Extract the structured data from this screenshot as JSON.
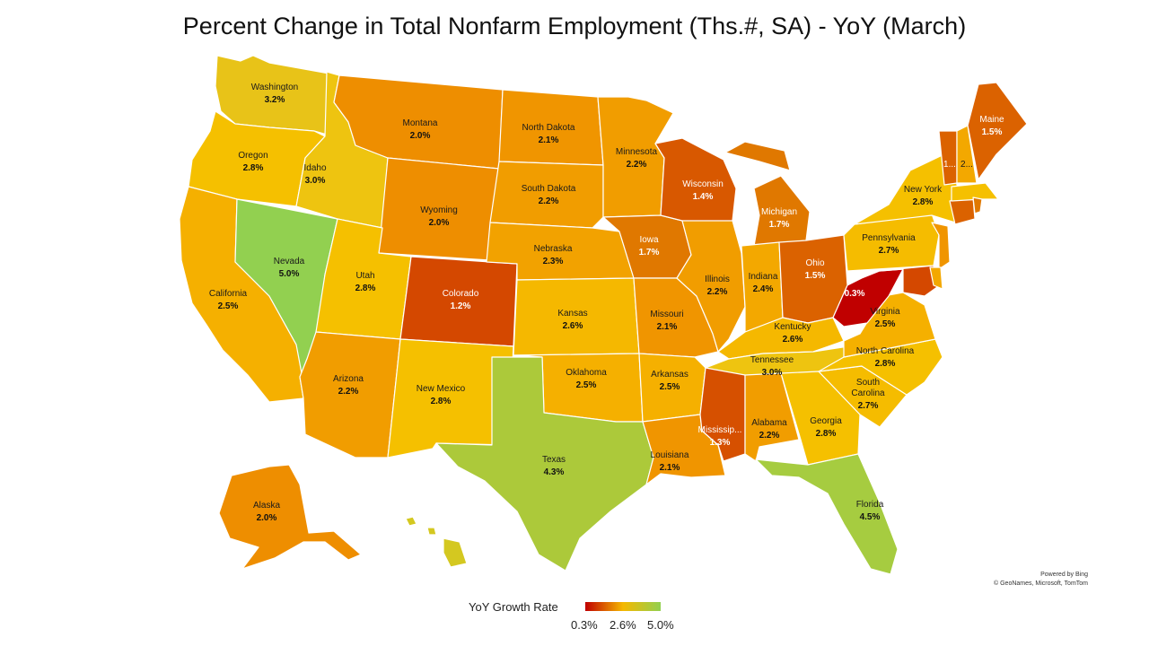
{
  "title": "Percent Change in Total Nonfarm Employment (Ths.#, SA) - YoY (March)",
  "credit": {
    "line1": "Powered by Bing",
    "line2": "© GeoNames, Microsoft, TomTom"
  },
  "legend": {
    "title": "YoY Growth Rate",
    "min_label": "0.3%",
    "mid_label": "2.6%",
    "max_label": "5.0%",
    "colors": {
      "low": "#c00000",
      "mid": "#f5b800",
      "high": "#92d050"
    }
  },
  "states": [
    {
      "id": "WA",
      "name": "Washington",
      "value": "3.2%",
      "color": "#e8c318"
    },
    {
      "id": "OR",
      "name": "Oregon",
      "value": "2.8%",
      "color": "#f5c000"
    },
    {
      "id": "CA",
      "name": "California",
      "value": "2.5%",
      "color": "#f5b000"
    },
    {
      "id": "NV",
      "name": "Nevada",
      "value": "5.0%",
      "color": "#92d050"
    },
    {
      "id": "ID",
      "name": "Idaho",
      "value": "3.0%",
      "color": "#eec410"
    },
    {
      "id": "MT",
      "name": "Montana",
      "value": "2.0%",
      "color": "#ee8e00"
    },
    {
      "id": "WY",
      "name": "Wyoming",
      "value": "2.0%",
      "color": "#ee8e00"
    },
    {
      "id": "UT",
      "name": "Utah",
      "value": "2.8%",
      "color": "#f5c000"
    },
    {
      "id": "AZ",
      "name": "Arizona",
      "value": "2.2%",
      "color": "#f19d00"
    },
    {
      "id": "CO",
      "name": "Colorado",
      "value": "1.2%",
      "color": "#d44800"
    },
    {
      "id": "NM",
      "name": "New Mexico",
      "value": "2.8%",
      "color": "#f5c000"
    },
    {
      "id": "ND",
      "name": "North Dakota",
      "value": "2.1%",
      "color": "#f09500"
    },
    {
      "id": "SD",
      "name": "South Dakota",
      "value": "2.2%",
      "color": "#f19d00"
    },
    {
      "id": "NE",
      "name": "Nebraska",
      "value": "2.3%",
      "color": "#f2a200"
    },
    {
      "id": "KS",
      "name": "Kansas",
      "value": "2.6%",
      "color": "#f5b800"
    },
    {
      "id": "OK",
      "name": "Oklahoma",
      "value": "2.5%",
      "color": "#f5b000"
    },
    {
      "id": "TX",
      "name": "Texas",
      "value": "4.3%",
      "color": "#acc93a"
    },
    {
      "id": "MN",
      "name": "Minnesota",
      "value": "2.2%",
      "color": "#f19d00"
    },
    {
      "id": "IA",
      "name": "Iowa",
      "value": "1.7%",
      "color": "#e07800"
    },
    {
      "id": "MO",
      "name": "Missouri",
      "value": "2.1%",
      "color": "#f09500"
    },
    {
      "id": "AR",
      "name": "Arkansas",
      "value": "2.5%",
      "color": "#f5b000"
    },
    {
      "id": "LA",
      "name": "Louisiana",
      "value": "2.1%",
      "color": "#f09500"
    },
    {
      "id": "WI",
      "name": "Wisconsin",
      "value": "1.4%",
      "color": "#d85800"
    },
    {
      "id": "IL",
      "name": "Illinois",
      "value": "2.2%",
      "color": "#f19d00"
    },
    {
      "id": "MI",
      "name": "Michigan",
      "value": "1.7%",
      "color": "#e07800"
    },
    {
      "id": "IN",
      "name": "Indiana",
      "value": "2.4%",
      "color": "#f3a800"
    },
    {
      "id": "OH",
      "name": "Ohio",
      "value": "1.5%",
      "color": "#db6200"
    },
    {
      "id": "KY",
      "name": "Kentucky",
      "value": "2.6%",
      "color": "#f5b800"
    },
    {
      "id": "TN",
      "name": "Tennessee",
      "value": "3.0%",
      "color": "#eec410"
    },
    {
      "id": "MS",
      "name": "Mississip...",
      "value": "1.3%",
      "color": "#d65000"
    },
    {
      "id": "AL",
      "name": "Alabama",
      "value": "2.2%",
      "color": "#f19d00"
    },
    {
      "id": "GA",
      "name": "Georgia",
      "value": "2.8%",
      "color": "#f5c000"
    },
    {
      "id": "FL",
      "name": "Florida",
      "value": "4.5%",
      "color": "#a6cc40"
    },
    {
      "id": "SC",
      "name": "South\nCarolina",
      "value": "2.7%",
      "color": "#f5bc00"
    },
    {
      "id": "NC",
      "name": "North Carolina",
      "value": "2.8%",
      "color": "#f5c000"
    },
    {
      "id": "VA",
      "name": "Virginia",
      "value": "2.5%",
      "color": "#f5b000"
    },
    {
      "id": "WV",
      "name": "",
      "value": "0.3%",
      "color": "#c00000"
    },
    {
      "id": "PA",
      "name": "Pennsylvania",
      "value": "2.7%",
      "color": "#f5bc00"
    },
    {
      "id": "NY",
      "name": "New York",
      "value": "2.8%",
      "color": "#f5c000"
    },
    {
      "id": "ME",
      "name": "Maine",
      "value": "1.5%",
      "color": "#db6200"
    },
    {
      "id": "VT",
      "name": "1...",
      "value": "",
      "color": "#db6200"
    },
    {
      "id": "NH",
      "name": "2...",
      "value": "",
      "color": "#f3a800"
    },
    {
      "id": "MD",
      "name": "",
      "value": "",
      "color": "#d44800"
    },
    {
      "id": "NJ",
      "name": "",
      "value": "",
      "color": "#f09500"
    },
    {
      "id": "DE",
      "name": "",
      "value": "",
      "color": "#f3a800"
    },
    {
      "id": "CT",
      "name": "",
      "value": "",
      "color": "#db6200"
    },
    {
      "id": "MA",
      "name": "",
      "value": "",
      "color": "#f5c000"
    },
    {
      "id": "RI",
      "name": "",
      "value": "",
      "color": "#e07800"
    },
    {
      "id": "AK",
      "name": "Alaska",
      "value": "2.0%",
      "color": "#ee8e00"
    },
    {
      "id": "HI",
      "name": "",
      "value": "",
      "color": "#d4c820"
    }
  ]
}
